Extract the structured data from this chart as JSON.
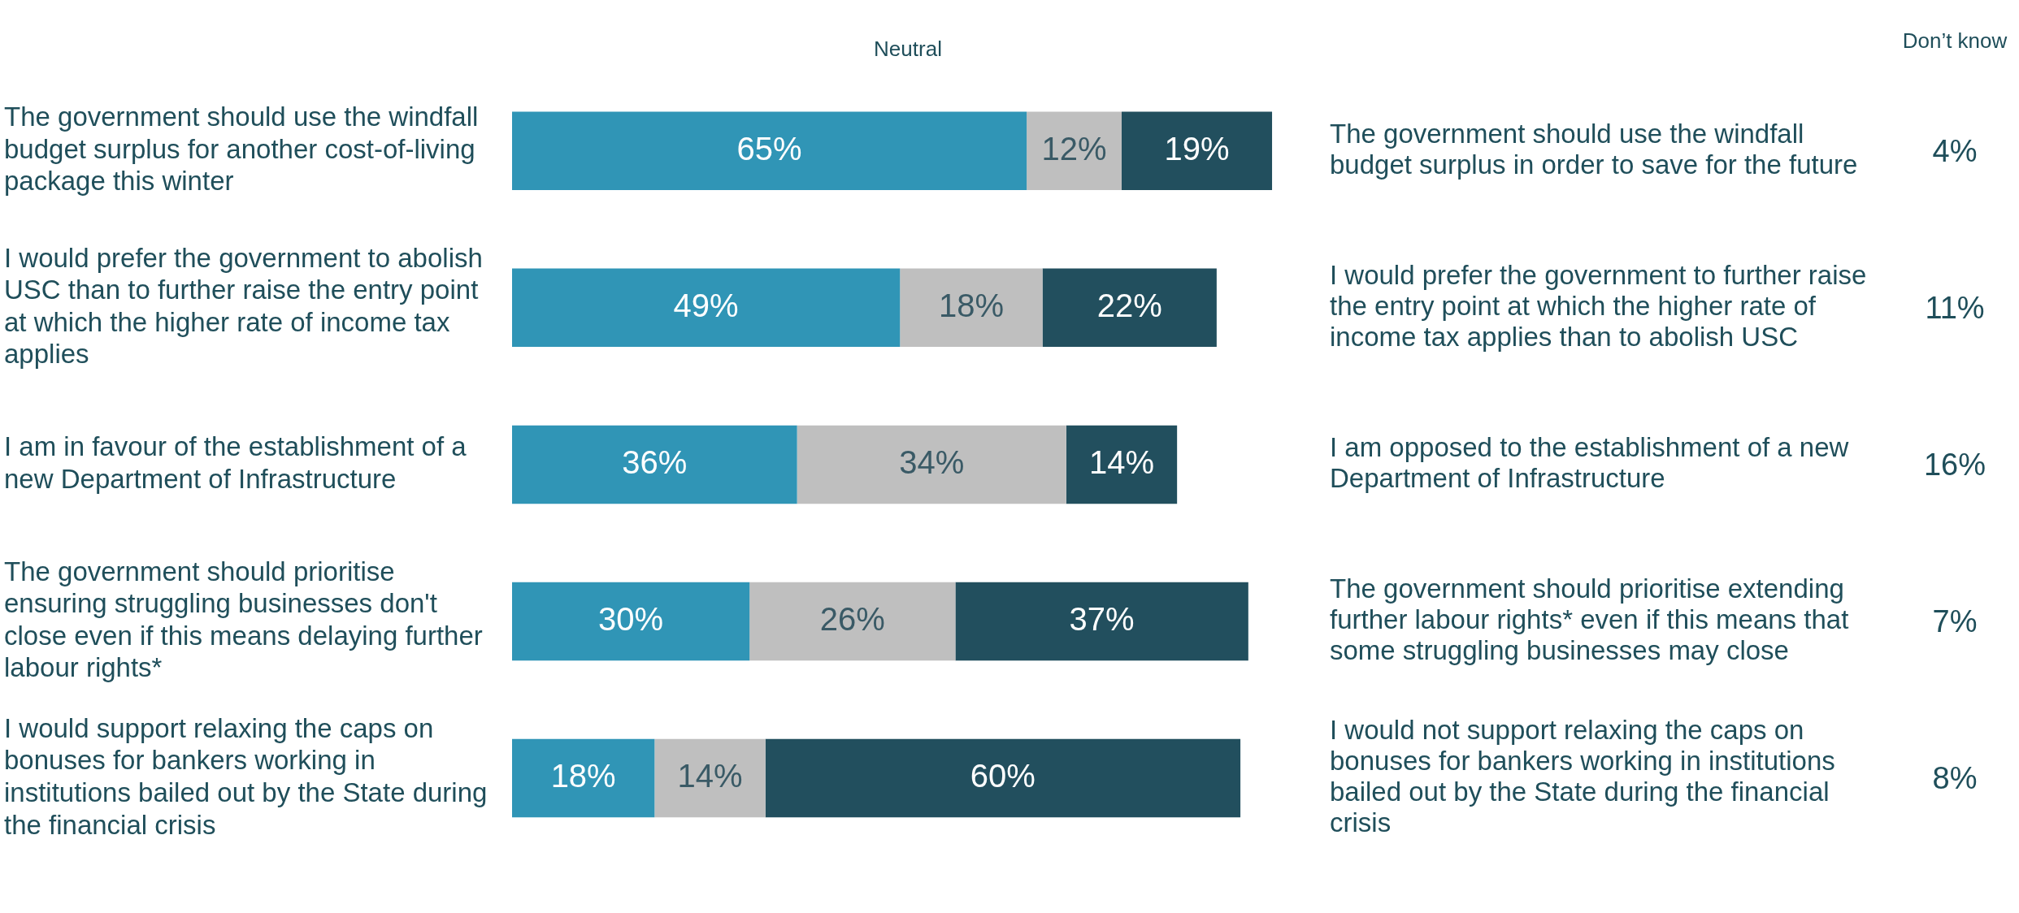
{
  "chart_data": [
    {
      "type": "bar",
      "orientation": "horizontal",
      "stacked": true,
      "categories": [
        "The government should use the windfall budget surplus for another cost-of-living package this winter",
        "I would prefer the government to abolish USC than to further raise the entry point at which the higher rate of income tax applies",
        "I am in favour of the establishment of a new Department of Infrastructure",
        "The government should prioritise ensuring struggling businesses don't close even if this means delaying further labour rights*",
        "I would support relaxing the caps on bonuses for bankers working in institutions bailed out by the State during the financial crisis"
      ],
      "series": [
        {
          "color": "#3095b6",
          "values": [
            65,
            49,
            36,
            30,
            18
          ],
          "value_labels": [
            "65%",
            "49%",
            "36%",
            "30%",
            "18%"
          ]
        },
        {
          "color": "#bfbfbf",
          "values": [
            12,
            18,
            34,
            26,
            14
          ],
          "value_labels": [
            "12%",
            "18%",
            "34%",
            "26%",
            "14%"
          ]
        },
        {
          "color": "#224f5e",
          "values": [
            19,
            22,
            14,
            37,
            60
          ],
          "value_labels": [
            "19%",
            "22%",
            "14%",
            "37%",
            "60%"
          ]
        }
      ],
      "tick_labels": "y",
      "legend": false,
      "annotations": [
        "Neutral",
        "The government should use the windfall budget surplus in order to save for the future",
        "I would prefer the government to further raise the entry point at which the higher rate of income tax applies than to abolish USC",
        "I am opposed to the establishment of a new Department of Infrastructure",
        "The government should prioritise extending further labour rights* even if this means that some struggling businesses may close",
        "I would not support relaxing the caps on bonuses for bankers working in institutions bailed out by the State during the financial crisis"
      ]
    },
    {
      "type": "other",
      "title": "Don’t know",
      "annotations": [
        "4%",
        "11%",
        "16%",
        "7%",
        "8%"
      ]
    }
  ]
}
